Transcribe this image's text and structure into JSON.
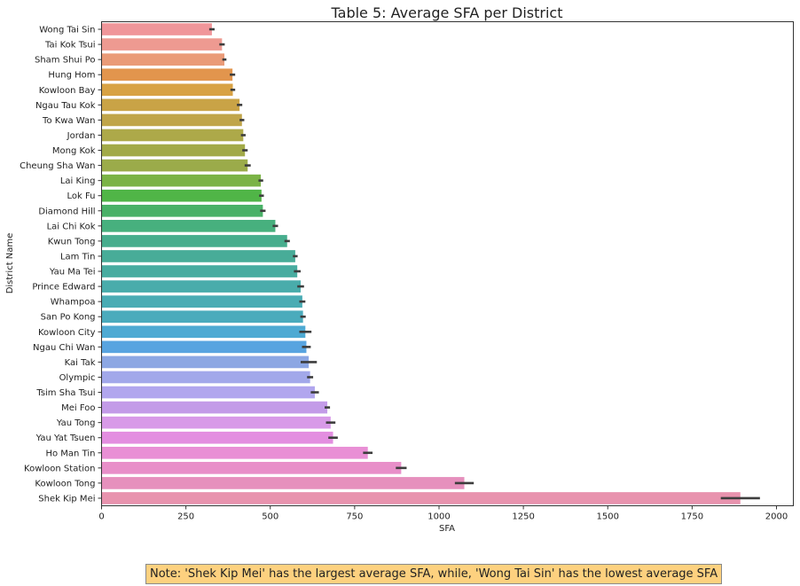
{
  "chart_data": {
    "type": "bar",
    "orientation": "horizontal",
    "title": "Table 5: Average SFA per District",
    "xlabel": "SFA",
    "ylabel": "District Name",
    "xlim": [
      0,
      2050
    ],
    "xticks": [
      0,
      250,
      500,
      750,
      1000,
      1250,
      1500,
      1750,
      2000
    ],
    "grid": false,
    "error_bars": true,
    "categories": [
      "Wong Tai Sin",
      "Tai Kok Tsui",
      "Sham Shui Po",
      "Hung Hom",
      "Kowloon Bay",
      "Ngau Tau Kok",
      "To Kwa Wan",
      "Jordan",
      "Mong Kok",
      "Cheung Sha Wan",
      "Lai King",
      "Lok Fu",
      "Diamond Hill",
      "Lai Chi Kok",
      "Kwun Tong",
      "Lam Tin",
      "Yau Ma Tei",
      "Prince Edward",
      "Whampoa",
      "San Po Kong",
      "Kowloon City",
      "Ngau Chi Wan",
      "Kai Tak",
      "Olympic",
      "Tsim Sha Tsui",
      "Mei Foo",
      "Yau Tong",
      "Yau Yat Tsuen",
      "Ho Man Tin",
      "Kowloon Station",
      "Kowloon Tong",
      "Shek Kip Mei"
    ],
    "values": [
      327,
      357,
      364,
      388,
      389,
      409,
      416,
      420,
      425,
      433,
      472,
      474,
      478,
      515,
      550,
      574,
      580,
      590,
      595,
      597,
      604,
      607,
      614,
      618,
      632,
      669,
      679,
      686,
      789,
      888,
      1075,
      1893
    ],
    "errors": [
      8,
      8,
      6,
      8,
      7,
      8,
      7,
      7,
      8,
      9,
      7,
      7,
      8,
      8,
      8,
      7,
      10,
      10,
      9,
      8,
      18,
      13,
      24,
      9,
      12,
      8,
      14,
      14,
      14,
      16,
      28,
      58
    ],
    "colors": [
      "#f0969a",
      "#ee9a91",
      "#ea9b78",
      "#e2954d",
      "#d8a244",
      "#c9a346",
      "#c0a54a",
      "#ada949",
      "#a2aa48",
      "#9bab4a",
      "#7bb346",
      "#50b547",
      "#49b167",
      "#47b07e",
      "#47ad8d",
      "#48ac98",
      "#48aca0",
      "#49acab",
      "#4aacb4",
      "#4babbc",
      "#4eaad3",
      "#58a4e0",
      "#8ca7e3",
      "#a2a8ea",
      "#b1a6ee",
      "#c39be8",
      "#d89ae8",
      "#e38ee0",
      "#e98fd5",
      "#e88fc9",
      "#e690bd",
      "#e893ae"
    ],
    "note": "Note: 'Shek Kip Mei' has the largest average SFA, while, 'Wong Tai Sin' has the lowest average SFA"
  }
}
